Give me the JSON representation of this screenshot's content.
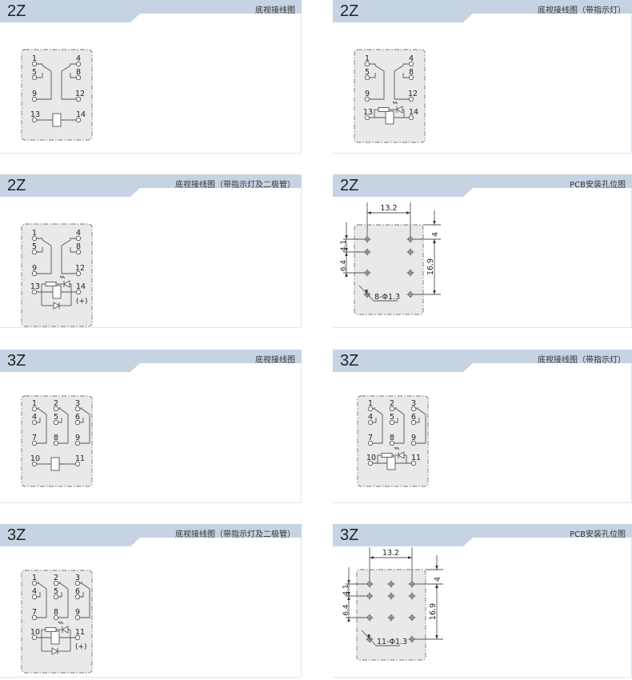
{
  "colors": {
    "header": "#c5d3e3",
    "diagram_fill": "#e9e9e9",
    "line": "#555555"
  },
  "panels": [
    {
      "title": "2Z",
      "subtitle": "底视接线图",
      "kind": "2z",
      "variant": "basic",
      "pins": [
        "1",
        "4",
        "5",
        "8",
        "9",
        "12",
        "13",
        "14"
      ]
    },
    {
      "title": "2Z",
      "subtitle": "底视接线图（带指示灯）",
      "kind": "2z",
      "variant": "led",
      "pins": [
        "1",
        "4",
        "5",
        "8",
        "9",
        "12",
        "13",
        "14"
      ]
    },
    {
      "title": "2Z",
      "subtitle": "底视接线图（带指示灯及二极管）",
      "kind": "2z",
      "variant": "diode",
      "pins": [
        "1",
        "4",
        "5",
        "8",
        "9",
        "12",
        "13",
        "14"
      ],
      "polarity": "(+)"
    },
    {
      "title": "2Z",
      "subtitle": "PCB安装孔位图",
      "kind": "pcb2",
      "dims": {
        "width": "13.2",
        "top": "4",
        "pitch1": "4.1",
        "pitch2": "6.4",
        "height": "16.9",
        "holes": "8-Φ1.3"
      }
    },
    {
      "title": "3Z",
      "subtitle": "底视接线图",
      "kind": "3z",
      "variant": "basic",
      "pins": [
        "1",
        "2",
        "3",
        "4",
        "5",
        "6",
        "7",
        "8",
        "9",
        "10",
        "11"
      ]
    },
    {
      "title": "3Z",
      "subtitle": "底视接线图（带指示灯）",
      "kind": "3z",
      "variant": "led",
      "pins": [
        "1",
        "2",
        "3",
        "4",
        "5",
        "6",
        "7",
        "8",
        "9",
        "10",
        "11"
      ]
    },
    {
      "title": "3Z",
      "subtitle": "底视接线图（带指示灯及二极管）",
      "kind": "3z",
      "variant": "diode",
      "pins": [
        "1",
        "2",
        "3",
        "4",
        "5",
        "6",
        "7",
        "8",
        "9",
        "10",
        "11"
      ],
      "polarity": "(+)"
    },
    {
      "title": "3Z",
      "subtitle": "PCB安装孔位图",
      "kind": "pcb3",
      "dims": {
        "width": "13.2",
        "top": "4",
        "pitch1": "4.1",
        "pitch2": "6.4",
        "height": "16.9",
        "holes": "11-Φ1.3"
      }
    }
  ]
}
